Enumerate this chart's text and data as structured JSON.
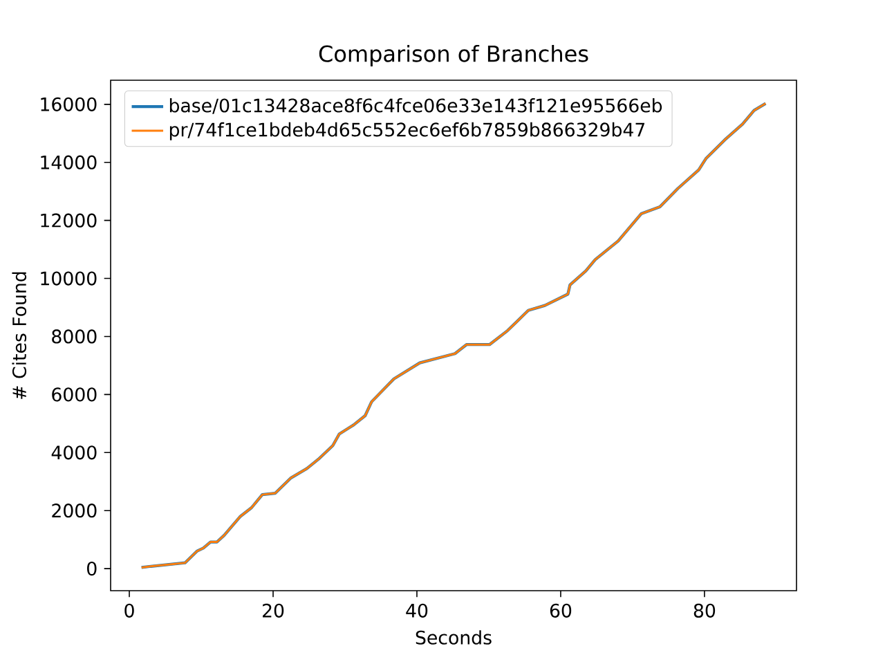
{
  "chart_data": {
    "type": "line",
    "title": "Comparison of Branches",
    "xlabel": "Seconds",
    "ylabel": "# Cites Found",
    "x": [
      1.7,
      3,
      7.75,
      9.4,
      10.3,
      11.3,
      12.2,
      13.2,
      15.4,
      17.0,
      18.5,
      20.3,
      22.5,
      24.7,
      26.3,
      28.3,
      29.2,
      31.2,
      32.8,
      33.7,
      36.8,
      40.4,
      45.3,
      46.9,
      50.1,
      52.6,
      53.9,
      55.5,
      57.8,
      61,
      61.3,
      63.5,
      64.8,
      68,
      71.2,
      73.8,
      76.3,
      79.2,
      80.2,
      82.8,
      85.3,
      86.9,
      88.5
    ],
    "series": [
      {
        "name": "base/01c13428ace8f6c4fce06e33e143f121e95566eb",
        "color": "#1f77b4",
        "values": [
          40,
          80,
          200,
          600,
          710,
          920,
          920,
          1150,
          1790,
          2100,
          2550,
          2600,
          3130,
          3450,
          3770,
          4240,
          4640,
          4950,
          5270,
          5750,
          6540,
          7090,
          7410,
          7720,
          7720,
          8200,
          8510,
          8900,
          9070,
          9460,
          9780,
          10260,
          10650,
          11290,
          12230,
          12470,
          13100,
          13740,
          14130,
          14770,
          15320,
          15790,
          16030
        ]
      },
      {
        "name": "pr/74f1ce1bdeb4d65c552ec6ef6b7859b866329b47",
        "color": "#ff7f0e",
        "values": [
          40,
          80,
          200,
          600,
          710,
          920,
          920,
          1150,
          1790,
          2100,
          2550,
          2600,
          3130,
          3450,
          3770,
          4240,
          4640,
          4950,
          5270,
          5750,
          6540,
          7090,
          7410,
          7720,
          7720,
          8200,
          8510,
          8900,
          9070,
          9460,
          9780,
          10260,
          10650,
          11290,
          12230,
          12470,
          13100,
          13740,
          14130,
          14770,
          15320,
          15790,
          16030
        ]
      }
    ],
    "xlim": [
      -2.6,
      92.8
    ],
    "ylim": [
      -760,
      16830
    ],
    "xticks": [
      0,
      20,
      40,
      60,
      80
    ],
    "yticks": [
      0,
      2000,
      4000,
      6000,
      8000,
      10000,
      12000,
      14000,
      16000
    ],
    "legend": "top left",
    "marker": "none",
    "line_style": "solid",
    "grid": false
  }
}
